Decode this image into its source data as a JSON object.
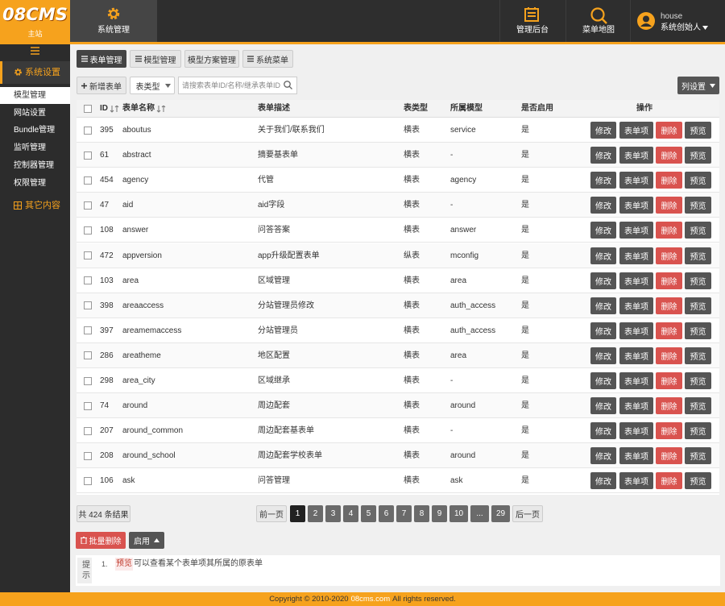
{
  "header": {
    "logo": "08CMS",
    "site": "主站",
    "module": "系统管理",
    "links": [
      "管理后台",
      "菜单地图"
    ],
    "user": "house",
    "role": "系统创始人"
  },
  "sidebar": {
    "section": "系统设置",
    "items": [
      "模型管理",
      "网站设置",
      "Bundle管理",
      "监听管理",
      "控制器管理",
      "权限管理"
    ],
    "other": "其它内容"
  },
  "tabs": [
    "表单管理",
    "模型管理",
    "模型方案管理",
    "系统菜单"
  ],
  "toolbar": {
    "add": "新增表单",
    "select": "表类型",
    "search_placeholder": "请搜索表单ID/名称/继承表单ID",
    "columns": "列设置"
  },
  "table": {
    "columns": [
      "ID",
      "表单名称",
      "表单描述",
      "表类型",
      "所属模型",
      "是否启用",
      "操作"
    ],
    "rows": [
      [
        "395",
        "aboutus",
        "关于我们/联系我们",
        "横表",
        "service",
        "是"
      ],
      [
        "61",
        "abstract",
        "摘要基表单",
        "横表",
        "-",
        "是"
      ],
      [
        "454",
        "agency",
        "代管",
        "横表",
        "agency",
        "是"
      ],
      [
        "47",
        "aid",
        "aid字段",
        "横表",
        "-",
        "是"
      ],
      [
        "108",
        "answer",
        "问答答案",
        "横表",
        "answer",
        "是"
      ],
      [
        "472",
        "appversion",
        "app升级配置表单",
        "纵表",
        "mconfig",
        "是"
      ],
      [
        "103",
        "area",
        "区域管理",
        "横表",
        "area",
        "是"
      ],
      [
        "398",
        "areaaccess",
        "分站管理员修改",
        "横表",
        "auth_access",
        "是"
      ],
      [
        "397",
        "areamemaccess",
        "分站管理员",
        "横表",
        "auth_access",
        "是"
      ],
      [
        "286",
        "areatheme",
        "地区配置",
        "横表",
        "area",
        "是"
      ],
      [
        "298",
        "area_city",
        "区域继承",
        "横表",
        "-",
        "是"
      ],
      [
        "74",
        "around",
        "周边配套",
        "横表",
        "around",
        "是"
      ],
      [
        "207",
        "around_common",
        "周边配套基表单",
        "横表",
        "-",
        "是"
      ],
      [
        "208",
        "around_school",
        "周边配套学校表单",
        "横表",
        "around",
        "是"
      ],
      [
        "106",
        "ask",
        "问答管理",
        "横表",
        "ask",
        "是"
      ]
    ],
    "actions": [
      "修改",
      "表单项",
      "删除",
      "预览"
    ]
  },
  "pagination": {
    "total": "共 424 条结果",
    "prev": "前一页",
    "pages": [
      "1",
      "2",
      "3",
      "4",
      "5",
      "6",
      "7",
      "8",
      "9",
      "10",
      "...",
      "29"
    ],
    "next": "后一页"
  },
  "bulk": {
    "delete": "批量删除",
    "enable": "启用"
  },
  "tips": {
    "label": "提示",
    "items": [
      {
        "number": "1.",
        "keyword": "预览",
        "text": "可以查看某个表单项其所属的原表单"
      }
    ]
  },
  "footer": [
    "Copyright © 2010-2020",
    "08cms.com",
    "All rights reserved."
  ]
}
